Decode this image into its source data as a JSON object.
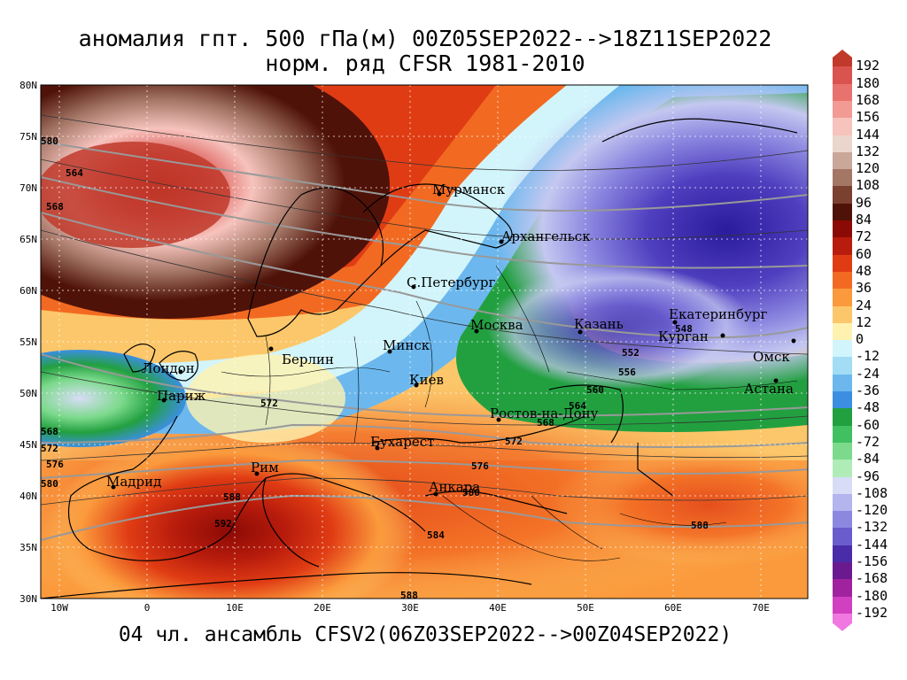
{
  "title_line1": "аномалия гпт. 500 гПа(м) 00Z05SEP2022-->18Z11SEP2022",
  "title_line2": "норм. ряд CFSR 1981-2010",
  "footer": "04 чл. ансамбль CFSV2(06Z03SEP2022-->00Z04SEP2022)",
  "lat_labels": [
    "80N",
    "75N",
    "70N",
    "65N",
    "60N",
    "55N",
    "50N",
    "45N",
    "40N",
    "35N",
    "30N"
  ],
  "lon_labels": [
    "10W",
    "0",
    "10E",
    "20E",
    "30E",
    "40E",
    "50E",
    "60E",
    "70E"
  ],
  "colorbar": {
    "levels": [
      "192",
      "180",
      "168",
      "156",
      "144",
      "132",
      "120",
      "108",
      "96",
      "84",
      "72",
      "60",
      "48",
      "36",
      "24",
      "12",
      "0",
      "-12",
      "-24",
      "-36",
      "-48",
      "-60",
      "-72",
      "-84",
      "-96",
      "-108",
      "-120",
      "-132",
      "-144",
      "-156",
      "-168",
      "-180",
      "-192"
    ],
    "colors": [
      "#c0392b",
      "#d9534f",
      "#e8736e",
      "#f19b94",
      "#f7c3bd",
      "#ead6cc",
      "#c9a89a",
      "#a47666",
      "#7a4030",
      "#4f1208",
      "#8c0a05",
      "#b81c0c",
      "#e03c14",
      "#f26a22",
      "#fb9a3c",
      "#fcc76a",
      "#fff2b0",
      "#d2f5fb",
      "#a2dcf5",
      "#6cb8ee",
      "#3c8fe0",
      "#22a040",
      "#40c060",
      "#7cda8c",
      "#b0ecb8",
      "#d8dcf6",
      "#b4b4ee",
      "#8c88e0",
      "#6a5ccc",
      "#4a2ca8",
      "#6a1a8e",
      "#a0229e",
      "#d040c0",
      "#f078e0"
    ]
  },
  "cities": [
    {
      "name": "Мурманск"
    },
    {
      "name": "Архангельск"
    },
    {
      "name": "С.Петербург"
    },
    {
      "name": "Москва"
    },
    {
      "name": "Казань"
    },
    {
      "name": "Екатеринбург"
    },
    {
      "name": "Курган"
    },
    {
      "name": "Омск"
    },
    {
      "name": "Астана"
    },
    {
      "name": "Минск"
    },
    {
      "name": "Киев"
    },
    {
      "name": "Берлин"
    },
    {
      "name": "Лондон"
    },
    {
      "name": "Париж"
    },
    {
      "name": "Мадрид"
    },
    {
      "name": "Рим"
    },
    {
      "name": "Бухарест"
    },
    {
      "name": "Анкара"
    },
    {
      "name": "Ростов-на-Дону"
    }
  ],
  "contour_labels": [
    "580",
    "564",
    "568",
    "548",
    "552",
    "556",
    "560",
    "564",
    "568",
    "572",
    "572",
    "568",
    "572",
    "576",
    "580",
    "588",
    "592",
    "576",
    "580",
    "584",
    "588",
    "588"
  ]
}
